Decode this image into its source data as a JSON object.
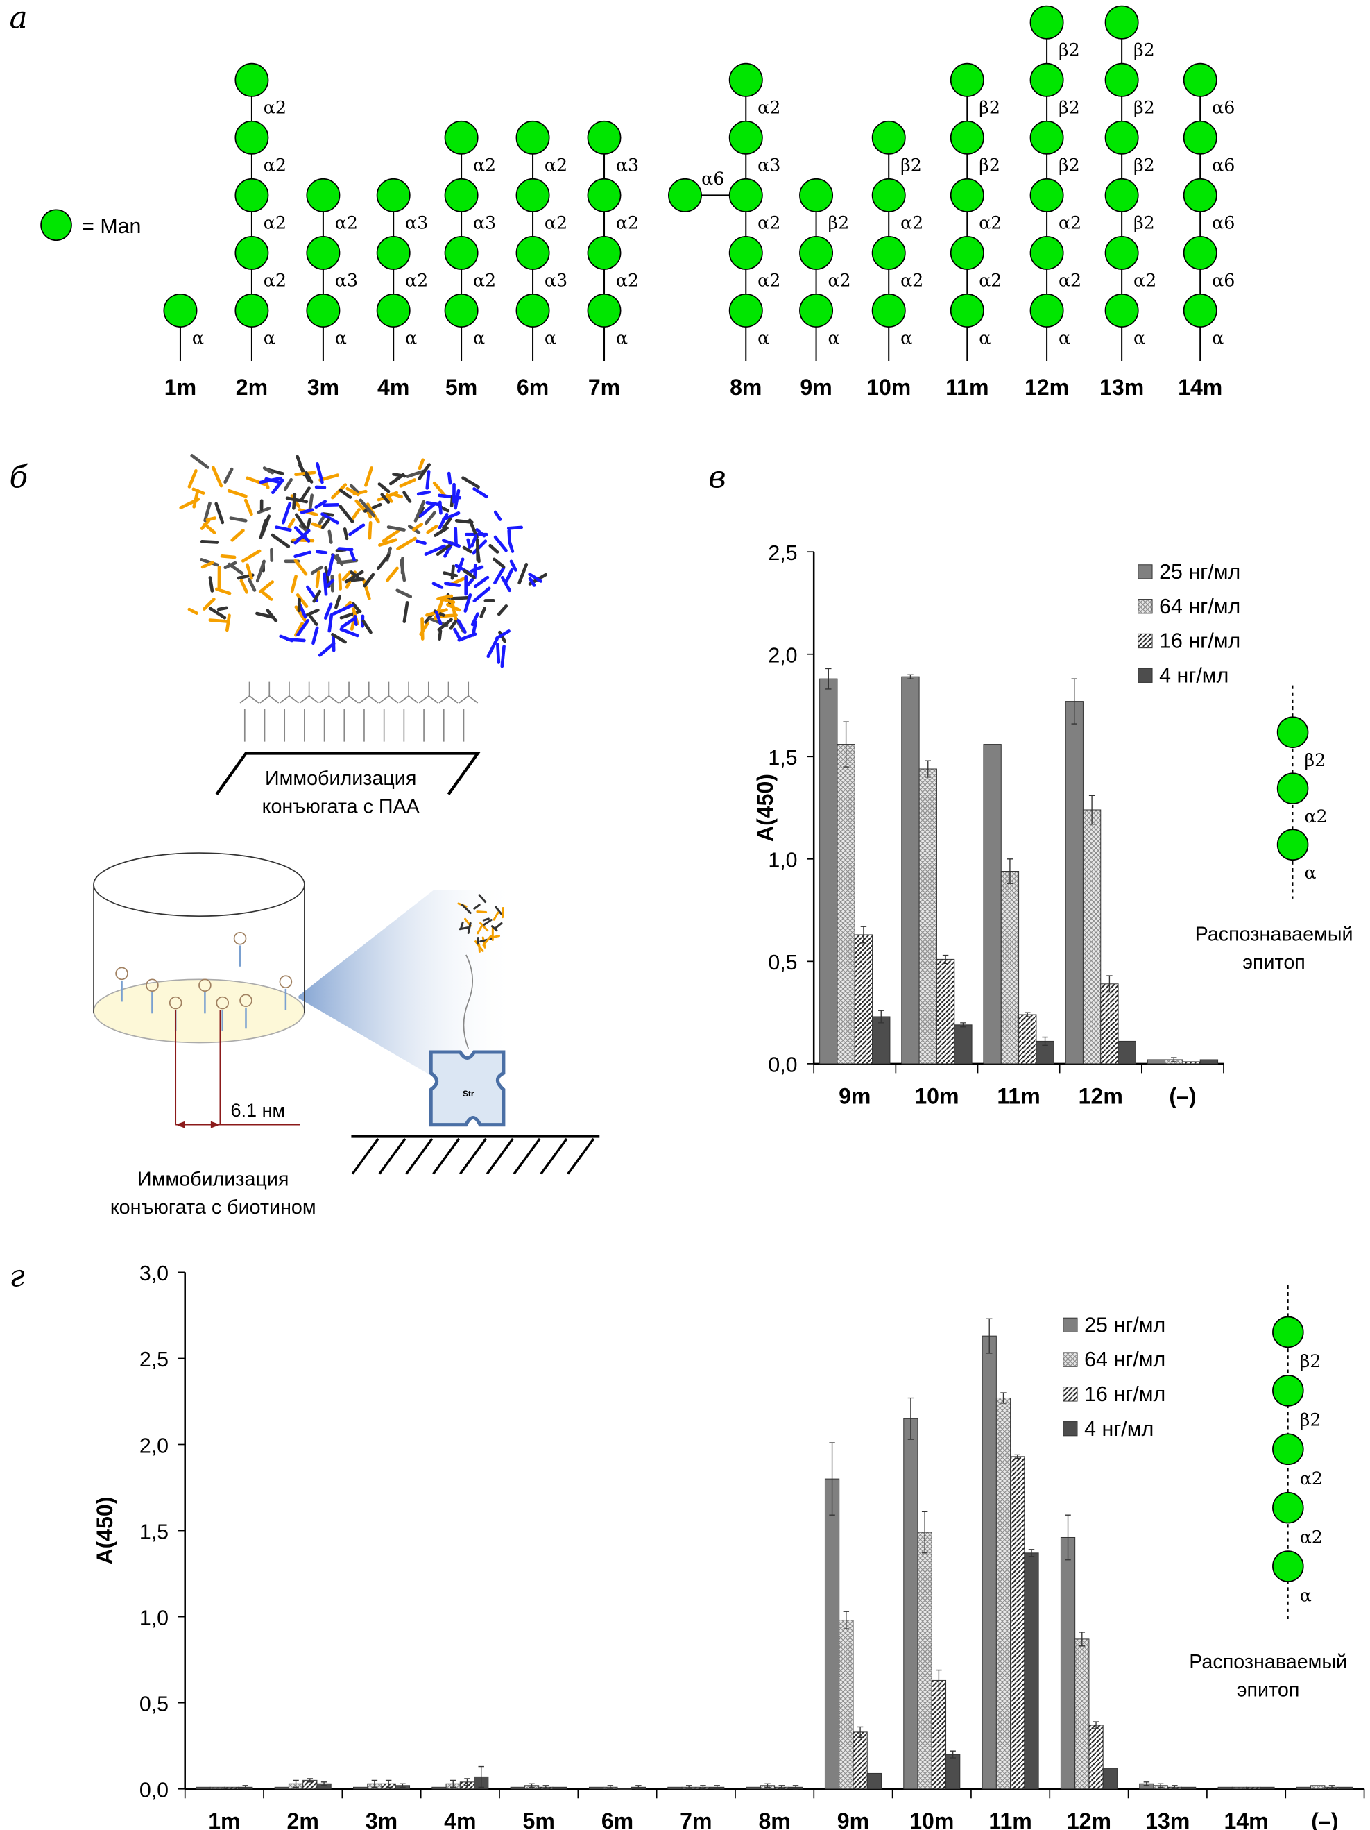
{
  "panels": {
    "a": "а",
    "b": "б",
    "c": "в",
    "d": "г"
  },
  "colors": {
    "man": "#00e600",
    "s25": "#808080",
    "s4": "#4d4d4d",
    "blue": "#1a1aff",
    "orange": "#f5a000"
  },
  "legend_a": {
    "label": "= Man",
    "icon": "green-circle"
  },
  "structures": [
    {
      "label": "1m",
      "links": [
        "α"
      ]
    },
    {
      "label": "2m",
      "links": [
        "α",
        "α2",
        "α2",
        "α2",
        "α2"
      ]
    },
    {
      "label": "3m",
      "links": [
        "α",
        "α3",
        "α2"
      ]
    },
    {
      "label": "4m",
      "links": [
        "α",
        "α2",
        "α3"
      ]
    },
    {
      "label": "5m",
      "links": [
        "α",
        "α2",
        "α3",
        "α2"
      ]
    },
    {
      "label": "6m",
      "links": [
        "α",
        "α3",
        "α2",
        "α2"
      ]
    },
    {
      "label": "7m",
      "links": [
        "α",
        "α2",
        "α2",
        "α3"
      ]
    },
    {
      "label": "8m",
      "links": [
        "α",
        "α2",
        "α2",
        "α3",
        "α2"
      ],
      "branch": {
        "on": 2,
        "link": "α6"
      }
    },
    {
      "label": "9m",
      "links": [
        "α",
        "α2",
        "β2"
      ]
    },
    {
      "label": "10m",
      "links": [
        "α",
        "α2",
        "α2",
        "β2"
      ]
    },
    {
      "label": "11m",
      "links": [
        "α",
        "α2",
        "α2",
        "β2",
        "β2"
      ]
    },
    {
      "label": "12m",
      "links": [
        "α",
        "α2",
        "α2",
        "β2",
        "β2",
        "β2"
      ]
    },
    {
      "label": "13m",
      "links": [
        "α",
        "α2",
        "β2",
        "β2",
        "β2",
        "β2"
      ]
    },
    {
      "label": "14m",
      "links": [
        "α",
        "α6",
        "α6",
        "α6",
        "α6"
      ]
    }
  ],
  "panel_b": {
    "paa_caption": [
      "Иммобилизация",
      "конъюгата  с ПАА"
    ],
    "distance": "6.1 нм",
    "biotin_caption": [
      "Иммобилизация",
      "конъюгата  с биотином"
    ],
    "streptavidin": "Str"
  },
  "chart_data": [
    {
      "type": "bar",
      "panel": "в",
      "ylabel": "A(450)",
      "ylim": [
        0,
        2.5
      ],
      "yticks": [
        "0,0",
        "0,5",
        "1,0",
        "1,5",
        "2,0",
        "2,5"
      ],
      "legend_position": "top-right",
      "categories": [
        "9m",
        "10m",
        "11m",
        "12m",
        "(–)"
      ],
      "series": [
        {
          "name": "25 нг/мл",
          "values": [
            1.88,
            1.89,
            1.56,
            1.77,
            0.02
          ],
          "errors": [
            0.05,
            0.01,
            0.0,
            0.11,
            0.0
          ]
        },
        {
          "name": "64 нг/мл",
          "values": [
            1.56,
            1.44,
            0.94,
            1.24,
            0.02
          ],
          "errors": [
            0.11,
            0.04,
            0.06,
            0.07,
            0.01
          ]
        },
        {
          "name": "16 нг/мл",
          "values": [
            0.63,
            0.51,
            0.24,
            0.39,
            0.01
          ],
          "errors": [
            0.04,
            0.02,
            0.01,
            0.04,
            0.0
          ]
        },
        {
          "name": "4 нг/мл",
          "values": [
            0.23,
            0.19,
            0.11,
            0.11,
            0.02
          ],
          "errors": [
            0.03,
            0.01,
            0.02,
            0.0,
            0.0
          ]
        }
      ],
      "epitope": {
        "links": [
          "α",
          "α2",
          "β2"
        ],
        "caption": [
          "Распознаваемый",
          "эпитоп"
        ]
      }
    },
    {
      "type": "bar",
      "panel": "г",
      "ylabel": "A(450)",
      "ylim": [
        0,
        3.0
      ],
      "yticks": [
        "0,0",
        "0,5",
        "1,0",
        "1,5",
        "2,0",
        "2,5",
        "3,0"
      ],
      "legend_position": "top-right",
      "categories": [
        "1m",
        "2m",
        "3m",
        "4m",
        "5m",
        "6m",
        "7m",
        "8m",
        "9m",
        "10m",
        "11m",
        "12m",
        "13m",
        "14m",
        "(–)"
      ],
      "series": [
        {
          "name": "25 нг/мл",
          "values": [
            0.01,
            0.01,
            0.01,
            0.01,
            0.01,
            0.01,
            0.01,
            0.01,
            1.8,
            2.15,
            2.63,
            1.46,
            0.03,
            0.01,
            0.01
          ],
          "errors": [
            0,
            0,
            0,
            0,
            0,
            0,
            0,
            0,
            0.21,
            0.12,
            0.1,
            0.13,
            0.01,
            0,
            0
          ]
        },
        {
          "name": "64 нг/мл",
          "values": [
            0.01,
            0.03,
            0.03,
            0.03,
            0.02,
            0.01,
            0.01,
            0.02,
            0.98,
            1.49,
            2.27,
            0.87,
            0.02,
            0.01,
            0.02
          ],
          "errors": [
            0,
            0.02,
            0.02,
            0.02,
            0.01,
            0.01,
            0.01,
            0.01,
            0.05,
            0.12,
            0.03,
            0.04,
            0.01,
            0,
            0
          ]
        },
        {
          "name": "16 нг/мл",
          "values": [
            0.01,
            0.05,
            0.03,
            0.04,
            0.01,
            0.0,
            0.01,
            0.01,
            0.33,
            0.63,
            1.93,
            0.37,
            0.01,
            0.01,
            0.01
          ],
          "errors": [
            0,
            0.01,
            0.02,
            0.02,
            0.01,
            0,
            0.01,
            0.01,
            0.03,
            0.06,
            0.01,
            0.02,
            0.01,
            0,
            0.01
          ]
        },
        {
          "name": "4 нг/мл",
          "values": [
            0.01,
            0.03,
            0.02,
            0.07,
            0.01,
            0.01,
            0.01,
            0.01,
            0.09,
            0.2,
            1.37,
            0.12,
            0.01,
            0.01,
            0.01
          ],
          "errors": [
            0.01,
            0.01,
            0.01,
            0.06,
            0,
            0.01,
            0.01,
            0.01,
            0,
            0.02,
            0.02,
            0,
            0,
            0,
            0
          ]
        }
      ],
      "epitope": {
        "links": [
          "α",
          "α2",
          "α2",
          "β2",
          "β2"
        ],
        "caption": [
          "Распознаваемый",
          "эпитоп"
        ]
      }
    }
  ]
}
